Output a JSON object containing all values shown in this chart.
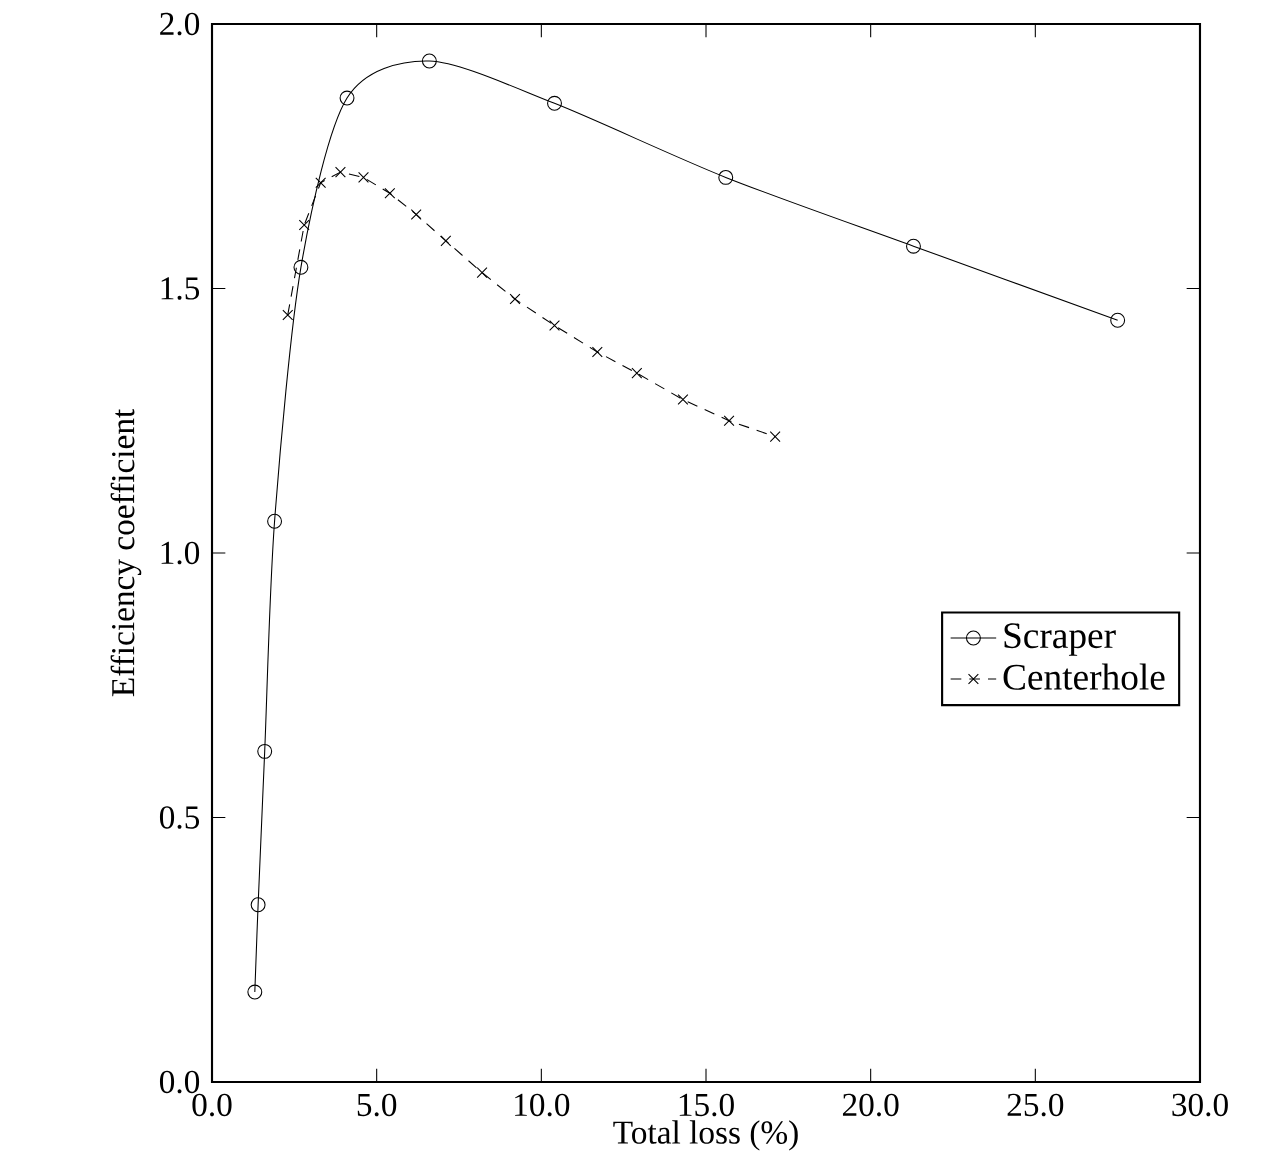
{
  "chart_data": {
    "type": "line",
    "xlabel": "Total loss (%)",
    "ylabel": "Efficiency coefficient",
    "xlim": [
      0,
      30
    ],
    "ylim": [
      0,
      2
    ],
    "xticks": [
      {
        "value": 0,
        "label": "0.0"
      },
      {
        "value": 5,
        "label": "5.0"
      },
      {
        "value": 10,
        "label": "10.0"
      },
      {
        "value": 15,
        "label": "15.0"
      },
      {
        "value": 20,
        "label": "20.0"
      },
      {
        "value": 25,
        "label": "25.0"
      },
      {
        "value": 30,
        "label": "30.0"
      }
    ],
    "yticks": [
      {
        "value": 0,
        "label": "0.0"
      },
      {
        "value": 0.5,
        "label": "0.5"
      },
      {
        "value": 1,
        "label": "1.0"
      },
      {
        "value": 1.5,
        "label": "1.5"
      },
      {
        "value": 2,
        "label": "2.0"
      }
    ],
    "grid": false,
    "legend": "right",
    "series": [
      {
        "name": "Scraper",
        "color": "#000000",
        "marker": "circle",
        "line_style": "solid",
        "x": [
          1.3,
          1.4,
          1.6,
          1.9,
          2.7,
          4.1,
          6.6,
          10.4,
          15.6,
          21.3,
          27.5
        ],
        "values": [
          0.17,
          0.335,
          0.625,
          1.06,
          1.54,
          1.86,
          1.93,
          1.85,
          1.71,
          1.58,
          1.44
        ]
      },
      {
        "name": "Centerhole",
        "color": "#000000",
        "marker": "cross",
        "line_style": "dashed",
        "x": [
          2.3,
          2.8,
          3.3,
          3.9,
          4.6,
          5.4,
          6.2,
          7.1,
          8.2,
          9.2,
          10.4,
          11.7,
          12.9,
          14.3,
          15.7,
          17.1
        ],
        "values": [
          1.45,
          1.62,
          1.7,
          1.72,
          1.71,
          1.68,
          1.64,
          1.59,
          1.53,
          1.48,
          1.43,
          1.38,
          1.34,
          1.29,
          1.25,
          1.22
        ]
      }
    ]
  }
}
